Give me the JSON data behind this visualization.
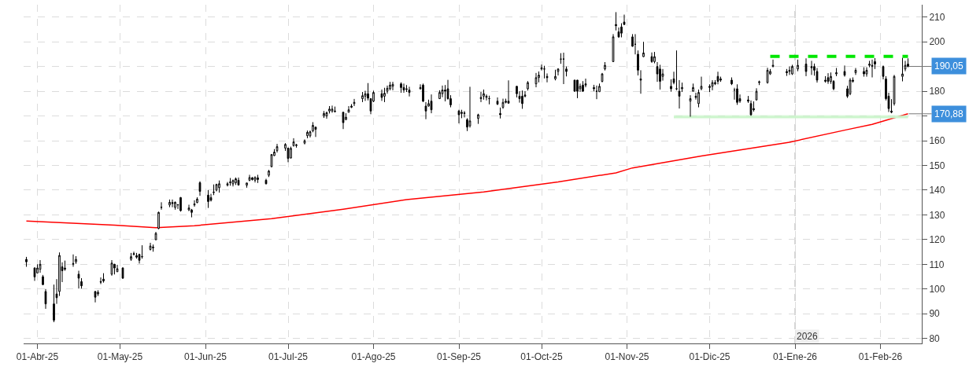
{
  "chart_data": {
    "type": "candlestick",
    "color": "#000000",
    "x": [
      "2025-03-28",
      "2025-03-31",
      "2025-04-01",
      "2025-04-02",
      "2025-04-03",
      "2025-04-04",
      "2025-04-07",
      "2025-04-08",
      "2025-04-09",
      "2025-04-10",
      "2025-04-11",
      "2025-04-14",
      "2025-04-15",
      "2025-04-16",
      "2025-04-17",
      "2025-04-22",
      "2025-04-23",
      "2025-04-24",
      "2025-04-25",
      "2025-04-28",
      "2025-04-29",
      "2025-04-30",
      "2025-05-02",
      "2025-05-05",
      "2025-05-06",
      "2025-05-07",
      "2025-05-08",
      "2025-05-09",
      "2025-05-12",
      "2025-05-13",
      "2025-05-14",
      "2025-05-15",
      "2025-05-16",
      "2025-05-19",
      "2025-05-20",
      "2025-05-21",
      "2025-05-22",
      "2025-05-23",
      "2025-05-26",
      "2025-05-27",
      "2025-05-28",
      "2025-05-29",
      "2025-05-30",
      "2025-06-02",
      "2025-06-03",
      "2025-06-04",
      "2025-06-05",
      "2025-06-06",
      "2025-06-09",
      "2025-06-10",
      "2025-06-11",
      "2025-06-12",
      "2025-06-13",
      "2025-06-16",
      "2025-06-17",
      "2025-06-18",
      "2025-06-19",
      "2025-06-20",
      "2025-06-23",
      "2025-06-24",
      "2025-06-25",
      "2025-06-26",
      "2025-06-27",
      "2025-06-30",
      "2025-07-01",
      "2025-07-02",
      "2025-07-03",
      "2025-07-04",
      "2025-07-07",
      "2025-07-08",
      "2025-07-09",
      "2025-07-10",
      "2025-07-11",
      "2025-07-14",
      "2025-07-15",
      "2025-07-16",
      "2025-07-17",
      "2025-07-18",
      "2025-07-21",
      "2025-07-22",
      "2025-07-23",
      "2025-07-24",
      "2025-07-25",
      "2025-07-28",
      "2025-07-29",
      "2025-07-30",
      "2025-07-31",
      "2025-08-01",
      "2025-08-04",
      "2025-08-05",
      "2025-08-06",
      "2025-08-07",
      "2025-08-08",
      "2025-08-11",
      "2025-08-12",
      "2025-08-13",
      "2025-08-14",
      "2025-08-18",
      "2025-08-19",
      "2025-08-20",
      "2025-08-21",
      "2025-08-22",
      "2025-08-25",
      "2025-08-26",
      "2025-08-27",
      "2025-08-28",
      "2025-08-29",
      "2025-09-01",
      "2025-09-02",
      "2025-09-03",
      "2025-09-04",
      "2025-09-05",
      "2025-09-08",
      "2025-09-09",
      "2025-09-10",
      "2025-09-11",
      "2025-09-12",
      "2025-09-15",
      "2025-09-16",
      "2025-09-17",
      "2025-09-18",
      "2025-09-19",
      "2025-09-22",
      "2025-09-23",
      "2025-09-24",
      "2025-09-25",
      "2025-09-26",
      "2025-09-29",
      "2025-09-30",
      "2025-10-01",
      "2025-10-02",
      "2025-10-03",
      "2025-10-06",
      "2025-10-07",
      "2025-10-08",
      "2025-10-09",
      "2025-10-10",
      "2025-10-13",
      "2025-10-14",
      "2025-10-15",
      "2025-10-16",
      "2025-10-17",
      "2025-10-20",
      "2025-10-21",
      "2025-10-22",
      "2025-10-23",
      "2025-10-24",
      "2025-10-27",
      "2025-10-28",
      "2025-10-29",
      "2025-10-30",
      "2025-10-31",
      "2025-11-03",
      "2025-11-04",
      "2025-11-05",
      "2025-11-06",
      "2025-11-07",
      "2025-11-10",
      "2025-11-11",
      "2025-11-12",
      "2025-11-13",
      "2025-11-14",
      "2025-11-17",
      "2025-11-18",
      "2025-11-19",
      "2025-11-20",
      "2025-11-21",
      "2025-11-24",
      "2025-11-25",
      "2025-11-26",
      "2025-11-27",
      "2025-11-28",
      "2025-12-01",
      "2025-12-02",
      "2025-12-03",
      "2025-12-04",
      "2025-12-05",
      "2025-12-09",
      "2025-12-10",
      "2025-12-11",
      "2025-12-12",
      "2025-12-15",
      "2025-12-16",
      "2025-12-17",
      "2025-12-18",
      "2025-12-19",
      "2025-12-22",
      "2025-12-23",
      "2025-12-24",
      "2025-12-29",
      "2025-12-30",
      "2025-12-31",
      "2026-01-02",
      "2026-01-05",
      "2026-01-07",
      "2026-01-08",
      "2026-01-09",
      "2026-01-12",
      "2026-01-13",
      "2026-01-14",
      "2026-01-15",
      "2026-01-16",
      "2026-01-19",
      "2026-01-20",
      "2026-01-21",
      "2026-01-22",
      "2026-01-23",
      "2026-01-26",
      "2026-01-27",
      "2026-01-28",
      "2026-01-29",
      "2026-01-30",
      "2026-02-02",
      "2026-02-03",
      "2026-02-04",
      "2026-02-05",
      "2026-02-06",
      "2026-02-09",
      "2026-02-10",
      "2026-02-11"
    ],
    "ohlc": [
      [
        112,
        113,
        109,
        111
      ],
      [
        108.5,
        108.8,
        103.3,
        104.9
      ],
      [
        106.5,
        110,
        106.4,
        108.5
      ],
      [
        108,
        111.7,
        106.6,
        110
      ],
      [
        105,
        105.7,
        101.6,
        101.8
      ],
      [
        99,
        100,
        92,
        94
      ],
      [
        94,
        101.8,
        86.6,
        87.4
      ],
      [
        98,
        104,
        94,
        96.5
      ],
      [
        99,
        114.8,
        97.2,
        113.6
      ],
      [
        109,
        110.8,
        102.8,
        107.4
      ],
      [
        108,
        111.5,
        107.4,
        108.5
      ],
      [
        110,
        114,
        109,
        110.3
      ],
      [
        111,
        113.3,
        110.2,
        112
      ],
      [
        106,
        107.4,
        100.2,
        104.4
      ],
      [
        103,
        104.4,
        100.2,
        101.3
      ],
      [
        99,
        99.2,
        94.6,
        96.7
      ],
      [
        98,
        99.5,
        97.2,
        98.7
      ],
      [
        103,
        104.7,
        102,
        102.8
      ],
      [
        104,
        106.4,
        102.6,
        103.3
      ],
      [
        106,
        111.7,
        105.4,
        110.5
      ],
      [
        110,
        110.2,
        105.9,
        108.5
      ],
      [
        107,
        109.8,
        106.9,
        108.2
      ],
      [
        108.5,
        108.8,
        104.1,
        104.4
      ],
      [
        112,
        114.6,
        111.4,
        113.1
      ],
      [
        114,
        115.1,
        113.6,
        114.3
      ],
      [
        113.5,
        114.6,
        112.3,
        112.9
      ],
      [
        114,
        114.3,
        110.3,
        111.6
      ],
      [
        113,
        117.7,
        112.3,
        113.1
      ],
      [
        116,
        118.7,
        115.6,
        117.4
      ],
      [
        117,
        118,
        115.1,
        116.7
      ],
      [
        120,
        123.1,
        119.7,
        122.5
      ],
      [
        124.5,
        131.3,
        124.2,
        131
      ],
      [
        133,
        135.1,
        132.1,
        133.1
      ],
      [
        134,
        136.2,
        133.1,
        135.1
      ],
      [
        135,
        136.2,
        133.1,
        134.6
      ],
      [
        133,
        135.4,
        132.1,
        135.1
      ],
      [
        134,
        134.4,
        132.4,
        134.1
      ],
      [
        137,
        137.2,
        131.3,
        131.7
      ],
      [
        132,
        134.1,
        131.5,
        132.8
      ],
      [
        132,
        132.4,
        129,
        131
      ],
      [
        134,
        135.9,
        133.3,
        134.4
      ],
      [
        135,
        137.1,
        134.7,
        136.4
      ],
      [
        143,
        143.6,
        137.7,
        139.5
      ],
      [
        138,
        140,
        132.8,
        135.4
      ],
      [
        137,
        138.5,
        135.4,
        135.9
      ],
      [
        139,
        142.3,
        138,
        139.2
      ],
      [
        140,
        142.6,
        139.5,
        142.3
      ],
      [
        141,
        143.9,
        139,
        142.6
      ],
      [
        142,
        143.3,
        141.5,
        142.6
      ],
      [
        143,
        144.9,
        141.8,
        143.3
      ],
      [
        142.5,
        144.3,
        141.5,
        143.9
      ],
      [
        143,
        145.1,
        142.1,
        144.6
      ],
      [
        144,
        145.1,
        141.8,
        142.1
      ],
      [
        142,
        143,
        141,
        142.9
      ],
      [
        144,
        146.2,
        143.6,
        145.1
      ],
      [
        145,
        145.3,
        143.9,
        144.3
      ],
      [
        144,
        145.6,
        143.1,
        145.1
      ],
      [
        145,
        146.2,
        142.9,
        144.3
      ],
      [
        144,
        144.6,
        142.3,
        142.6
      ],
      [
        146,
        148.2,
        145.3,
        147.7
      ],
      [
        149.5,
        154.6,
        149.2,
        154.4
      ],
      [
        154,
        156.6,
        153.8,
        155.4
      ],
      [
        156,
        158.7,
        155.2,
        157.6
      ],
      [
        157,
        159,
        155.9,
        158.5
      ],
      [
        157,
        157.2,
        151.3,
        152.8
      ],
      [
        153,
        157.6,
        152.8,
        156.9
      ],
      [
        158,
        161,
        157.6,
        159.5
      ],
      [
        158,
        158.7,
        157.2,
        158.3
      ],
      [
        159,
        160.5,
        158.5,
        160
      ],
      [
        162,
        164.1,
        161,
        163.4
      ],
      [
        162,
        164.1,
        161.3,
        163.6
      ],
      [
        164,
        167.5,
        163.4,
        166.2
      ],
      [
        165.5,
        165.6,
        161.5,
        164.6
      ],
      [
        170,
        172,
        169.2,
        171
      ],
      [
        170,
        171.8,
        168.9,
        171.3
      ],
      [
        172,
        174,
        171,
        172.8
      ],
      [
        172,
        174.2,
        171.3,
        172.8
      ],
      [
        172,
        173.8,
        171.4,
        171.8
      ],
      [
        171.5,
        171.6,
        164.7,
        167.3
      ],
      [
        168.5,
        171.1,
        168.4,
        169.5
      ],
      [
        171.5,
        174,
        171.4,
        172.5
      ],
      [
        173.5,
        174.8,
        173.2,
        174
      ],
      [
        175,
        176.9,
        174,
        175.5
      ],
      [
        177,
        179.7,
        175.6,
        178.2
      ],
      [
        178,
        180.2,
        176.1,
        179
      ],
      [
        179,
        183.3,
        176.3,
        177.2
      ],
      [
        177,
        177.1,
        170.7,
        172
      ],
      [
        176,
        180.2,
        175.6,
        179.5
      ],
      [
        179,
        180.7,
        176.1,
        177.5
      ],
      [
        178,
        181.4,
        175.6,
        179.2
      ],
      [
        180,
        182.3,
        179,
        181.2
      ],
      [
        181,
        183.8,
        180.4,
        182.5
      ],
      [
        182,
        183.8,
        180.4,
        182.8
      ],
      [
        183,
        183.6,
        179.4,
        181.5
      ],
      [
        181.5,
        183.1,
        179.4,
        180.5
      ],
      [
        181,
        182.5,
        179.7,
        180.8
      ],
      [
        180.5,
        181.8,
        177.9,
        179.5
      ],
      [
        181,
        182.8,
        180.7,
        181.5
      ],
      [
        182.5,
        183.1,
        175.6,
        176
      ],
      [
        174,
        175.6,
        168.7,
        172
      ],
      [
        174,
        176.6,
        173.8,
        175
      ],
      [
        176,
        178.7,
        171.1,
        172.5
      ],
      [
        177,
        180.4,
        176.9,
        179.5
      ],
      [
        179,
        182.3,
        177.6,
        180.5
      ],
      [
        180.5,
        182.5,
        175.9,
        180
      ],
      [
        181,
        184.6,
        176.6,
        177
      ],
      [
        177,
        178.4,
        173.5,
        174.5
      ],
      [
        172,
        172.5,
        167,
        170.5
      ],
      [
        171,
        172.5,
        169.1,
        171.5
      ],
      [
        171,
        172,
        169.4,
        171.2
      ],
      [
        168.5,
        169.1,
        163.9,
        165.5
      ],
      [
        166,
        181.8,
        165.3,
        168
      ],
      [
        169,
        170.9,
        166.8,
        170.5
      ],
      [
        177,
        179.7,
        175.6,
        177.5
      ],
      [
        178,
        180.7,
        176.6,
        179
      ],
      [
        177.5,
        178.7,
        176.3,
        178
      ],
      [
        177,
        178.2,
        174.7,
        177
      ],
      [
        176,
        177.5,
        174.4,
        174.8
      ],
      [
        171,
        173.4,
        169,
        170.5
      ],
      [
        173.5,
        177,
        172.9,
        175.5
      ],
      [
        175.5,
        177,
        175.1,
        176
      ],
      [
        176,
        184.4,
        174.9,
        175.2
      ],
      [
        182,
        182.1,
        177.5,
        179
      ],
      [
        178,
        180,
        175.4,
        177
      ],
      [
        178,
        180.3,
        172.9,
        175
      ],
      [
        178,
        180,
        177.5,
        178.5
      ],
      [
        181,
        184.1,
        180.3,
        183.5
      ],
      [
        183,
        187.4,
        181.6,
        185.5
      ],
      [
        185.5,
        188,
        183.6,
        186.5
      ],
      [
        189,
        190.8,
        188.4,
        189.5
      ],
      [
        189,
        190.3,
        185.2,
        189
      ],
      [
        186,
        187.2,
        183.6,
        185.5
      ],
      [
        185,
        188.7,
        184.4,
        186
      ],
      [
        188,
        189.3,
        186.4,
        189
      ],
      [
        193,
        195.4,
        191.1,
        193
      ],
      [
        193,
        195.6,
        182.9,
        193
      ],
      [
        189,
        190,
        186,
        188
      ],
      [
        184.5,
        184.6,
        179.8,
        180
      ],
      [
        184.5,
        184.6,
        177.2,
        180
      ],
      [
        181,
        183.1,
        179.8,
        182
      ],
      [
        182.5,
        184.1,
        179.8,
        180
      ],
      [
        183,
        185.1,
        181.6,
        182.5
      ],
      [
        181.5,
        182.6,
        180,
        181
      ],
      [
        180,
        182.3,
        176.8,
        180
      ],
      [
        179.8,
        183.1,
        179.8,
        182
      ],
      [
        184,
        187.4,
        183.6,
        187
      ],
      [
        189,
        191.8,
        188.4,
        190.5
      ],
      [
        192,
        203.1,
        191.8,
        202
      ],
      [
        207,
        212,
        204.6,
        206.5
      ],
      [
        204,
        205.8,
        201.6,
        202
      ],
      [
        206,
        207.5,
        201.8,
        203.5
      ],
      [
        208,
        211,
        206.9,
        207
      ],
      [
        202,
        203.1,
        198,
        198.2
      ],
      [
        199,
        203.1,
        194.9,
        199
      ],
      [
        195,
        196.5,
        186.4,
        188.5
      ],
      [
        185,
        188.5,
        179,
        184.5
      ],
      [
        194,
        200,
        193.8,
        195.5
      ],
      [
        194,
        195.7,
        191.5,
        192
      ],
      [
        192,
        195.9,
        191.3,
        194
      ],
      [
        190,
        191.8,
        183.8,
        187
      ],
      [
        189,
        190.7,
        180.7,
        184
      ],
      [
        186,
        189,
        184.3,
        187
      ],
      [
        182,
        184.8,
        179.8,
        181
      ],
      [
        185,
        187.9,
        182.8,
        183.5
      ],
      [
        181,
        196.5,
        180.4,
        181
      ],
      [
        180,
        184.5,
        173,
        178
      ],
      [
        181,
        183.5,
        179.7,
        181.5
      ],
      [
        176,
        178.4,
        169.7,
        177
      ],
      [
        180,
        183.1,
        180,
        181.5
      ],
      [
        178,
        179.4,
        176.6,
        177.5
      ],
      [
        175,
        180.7,
        173.5,
        179.5
      ],
      [
        181,
        185.9,
        180.4,
        182
      ],
      [
        181.5,
        182.8,
        179.7,
        182
      ],
      [
        182,
        184.5,
        180.4,
        183.5
      ],
      [
        183,
        184.5,
        182.5,
        183.5
      ],
      [
        186,
        187.9,
        182.8,
        184
      ],
      [
        185,
        185.9,
        183.8,
        184.5
      ],
      [
        184.5,
        185.6,
        182.5,
        183
      ],
      [
        180.5,
        181.4,
        176.6,
        180.5
      ],
      [
        181,
        182.8,
        174.5,
        175.5
      ],
      [
        177,
        178.7,
        175.3,
        176
      ],
      [
        176.5,
        178.1,
        175.3,
        176
      ],
      [
        175,
        176.3,
        170.1,
        170.5
      ],
      [
        173,
        175.9,
        171.8,
        172.5
      ],
      [
        176.5,
        181.2,
        176.3,
        180
      ],
      [
        183.5,
        184.3,
        182.5,
        183.8
      ],
      [
        183.5,
        189.5,
        183.1,
        188.5
      ],
      [
        187,
        189,
        186.6,
        188
      ],
      [
        190,
        192.8,
        189.7,
        190.5
      ],
      [
        188,
        189,
        186.2,
        187.5
      ],
      [
        188,
        190,
        186.6,
        188.5
      ],
      [
        187,
        190.7,
        186.6,
        190
      ],
      [
        189,
        192.8,
        188.1,
        190.5
      ],
      [
        191,
        193.3,
        186.1,
        188
      ],
      [
        190,
        192.3,
        186.6,
        189.5
      ],
      [
        190,
        191.2,
        186.3,
        188.5
      ],
      [
        188,
        189.4,
        183.5,
        184.5
      ],
      [
        184,
        186.1,
        183.5,
        184.5
      ],
      [
        185.5,
        187.3,
        183,
        184
      ],
      [
        184,
        187.6,
        183,
        186
      ],
      [
        184,
        184.5,
        180.4,
        181
      ],
      [
        187,
        189.4,
        186.1,
        187.5
      ],
      [
        188,
        190.4,
        185.9,
        186.5
      ],
      [
        181,
        182.2,
        177.3,
        178
      ],
      [
        179,
        185.3,
        178.4,
        184.5
      ],
      [
        184,
        185.6,
        183.5,
        184.5
      ],
      [
        187.5,
        189.4,
        186.6,
        188.5
      ],
      [
        188,
        189.7,
        185.9,
        187
      ],
      [
        187,
        189.7,
        185.9,
        188.5
      ],
      [
        190.5,
        192.3,
        189.7,
        191
      ],
      [
        190,
        192.8,
        185.6,
        190.5
      ],
      [
        192,
        193.4,
        189,
        191
      ],
      [
        190,
        190.4,
        184.8,
        186
      ],
      [
        185,
        186.1,
        176.3,
        177
      ],
      [
        178,
        179.4,
        171.6,
        173
      ],
      [
        172,
        176.8,
        171.1,
        171.5
      ],
      [
        175,
        186.6,
        174.2,
        186
      ],
      [
        186,
        193.5,
        184,
        187
      ],
      [
        189,
        192.3,
        188.1,
        190.5
      ],
      [
        191,
        193.3,
        189.7,
        190.05
      ]
    ],
    "series": [
      {
        "type": "line",
        "color": "#ff0000",
        "x": [
          "2025-03-28",
          "2025-04-29",
          "2025-05-14",
          "2025-05-28",
          "2025-06-25",
          "2025-07-21",
          "2025-08-13",
          "2025-09-10",
          "2025-10-07",
          "2025-10-28",
          "2025-11-03",
          "2025-11-28",
          "2025-12-30",
          "2026-01-20",
          "2026-01-29",
          "2026-02-11"
        ],
        "values": [
          127.5,
          125.8,
          124.8,
          125.6,
          128.5,
          132.3,
          136.2,
          139.3,
          143.3,
          147,
          149,
          153.8,
          159.4,
          164.5,
          166.6,
          170.88
        ]
      },
      {
        "type": "line",
        "color": "#00e600",
        "line_style": "dashed",
        "x": [
          "2025-12-23",
          "2026-02-11"
        ],
        "values": [
          194.1,
          194.1
        ]
      },
      {
        "type": "line",
        "color": "#ccf5cc",
        "x": [
          "2025-11-18",
          "2026-02-11"
        ],
        "values": [
          169.6,
          169.6
        ],
        "lower": [
          168.8,
          168.8
        ],
        "upper": [
          170.4,
          170.4
        ]
      }
    ],
    "xlim": [
      "2025-03-27",
      "2026-02-16"
    ],
    "xticks": [
      {
        "value": "2025-04-01",
        "label": "01-Abr-25"
      },
      {
        "value": "2025-05-01",
        "label": "01-May-25"
      },
      {
        "value": "2025-06-01",
        "label": "01-Jun-25"
      },
      {
        "value": "2025-07-01",
        "label": "01-Jul-25"
      },
      {
        "value": "2025-08-01",
        "label": "01-Ago-25"
      },
      {
        "value": "2025-09-01",
        "label": "01-Sep-25"
      },
      {
        "value": "2025-10-01",
        "label": "01-Oct-25"
      },
      {
        "value": "2025-11-01",
        "label": "01-Nov-25"
      },
      {
        "value": "2025-12-01",
        "label": "01-Dic-25"
      },
      {
        "value": "2026-01-01",
        "label": "01-Ene-26"
      },
      {
        "value": "2026-02-01",
        "label": "01-Feb-26"
      }
    ],
    "ylim": [
      78,
      215
    ],
    "yticks": [
      80,
      90,
      100,
      110,
      120,
      130,
      140,
      150,
      160,
      {
        "value": 170,
        "label": null
      },
      180,
      {
        "value": 190,
        "label": null
      },
      200,
      210
    ],
    "ref_lines": [
      {
        "axis": "x",
        "value": "2026-01-01",
        "label": "2026",
        "color": "#c8c8c8",
        "line_style": "dashed"
      }
    ],
    "annotations": [
      {
        "text": "190,05",
        "x": "2026-02-11",
        "y": 190.05
      },
      {
        "text": "170,88",
        "x": "2026-02-11",
        "y": 170.88
      }
    ],
    "grid": true
  }
}
